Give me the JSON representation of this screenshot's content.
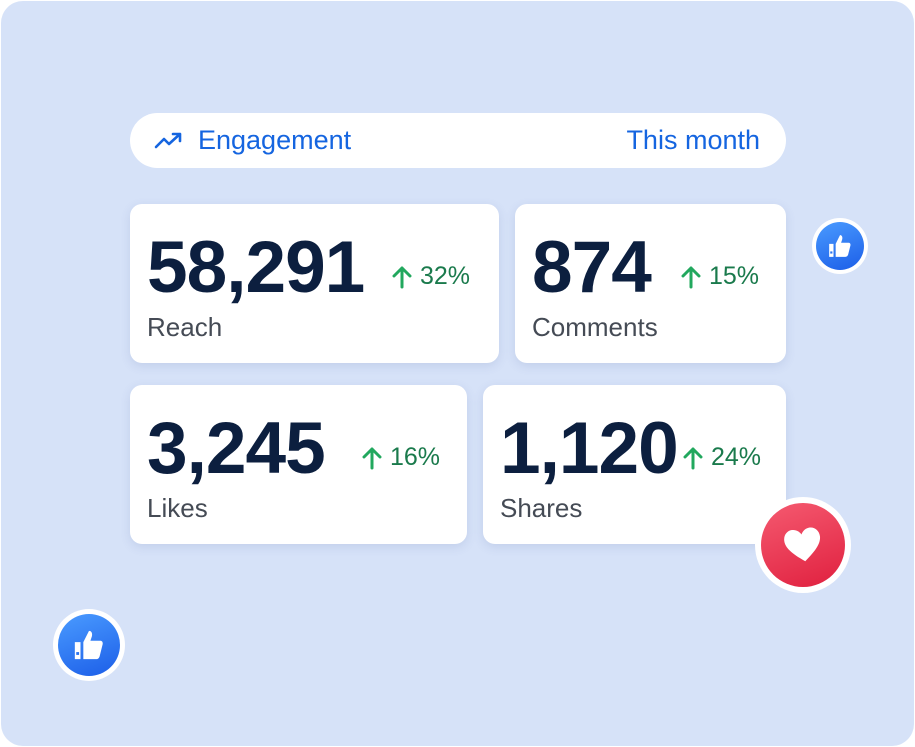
{
  "header": {
    "title": "Engagement",
    "period": "This month",
    "icon": "trending-up-icon"
  },
  "colors": {
    "accent": "#1565e0",
    "positive": "#1a7a4c",
    "up_arrow": "#22a85e",
    "number": "#0c1f3f",
    "heart": "#e8334f",
    "like": "#2a73ef"
  },
  "metrics": [
    {
      "value": "58,291",
      "change": "32%",
      "label": "Reach"
    },
    {
      "value": "874",
      "change": "15%",
      "label": "Comments"
    },
    {
      "value": "3,245",
      "change": "16%",
      "label": "Likes"
    },
    {
      "value": "1,120",
      "change": "24%",
      "label": "Shares"
    }
  ],
  "decorations": [
    "thumbs-up-icon",
    "heart-icon",
    "thumbs-up-icon"
  ]
}
